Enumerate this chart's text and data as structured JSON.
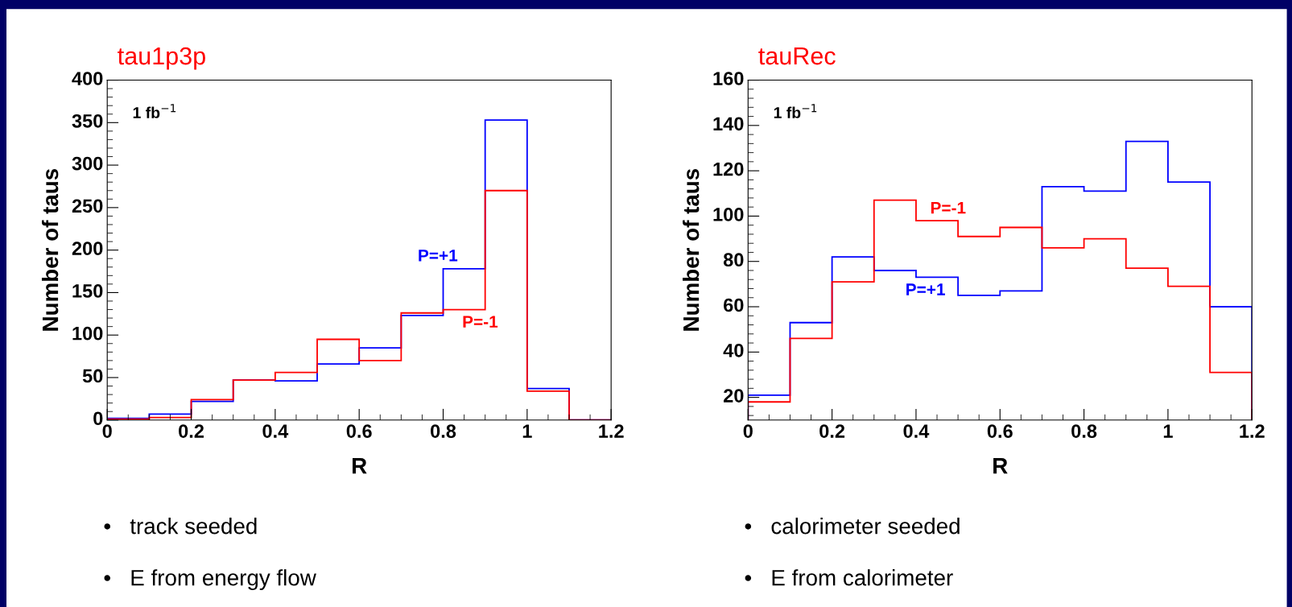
{
  "chart_data": [
    {
      "type": "histogram",
      "title": "tau1p3p",
      "xlabel": "R",
      "ylabel": "Number of taus",
      "bins": [
        0,
        0.1,
        0.2,
        0.3,
        0.4,
        0.5,
        0.6,
        0.7,
        0.8,
        0.9,
        1.0,
        1.1,
        1.2
      ],
      "series": [
        {
          "name": "P=+1",
          "color": "#0000ff",
          "values": [
            2,
            7,
            22,
            47,
            46,
            66,
            85,
            123,
            178,
            353,
            37,
            0
          ]
        },
        {
          "name": "P=-1",
          "color": "#ff0000",
          "values": [
            1,
            3,
            24,
            47,
            56,
            95,
            70,
            126,
            130,
            270,
            34,
            0
          ]
        }
      ],
      "xlim": [
        0,
        1.2
      ],
      "xticks": [
        0,
        0.2,
        0.4,
        0.6,
        0.8,
        1,
        1.2
      ],
      "ylim": [
        0,
        400
      ],
      "yticks": [
        0,
        50,
        100,
        150,
        200,
        250,
        300,
        350,
        400
      ],
      "annotations": [
        "1 fb$^{−1}$",
        "•   track seeded",
        "•   E from energy flow"
      ]
    },
    {
      "type": "histogram",
      "title": "tauRec",
      "xlabel": "R",
      "ylabel": "Number of taus",
      "bins": [
        0,
        0.1,
        0.2,
        0.3,
        0.4,
        0.5,
        0.6,
        0.7,
        0.8,
        0.9,
        1.0,
        1.1,
        1.2
      ],
      "series": [
        {
          "name": "P=+1",
          "color": "#0000ff",
          "values": [
            21,
            53,
            82,
            76,
            73,
            65,
            67,
            113,
            111,
            133,
            115,
            60
          ]
        },
        {
          "name": "P=-1",
          "color": "#ff0000",
          "values": [
            18,
            46,
            71,
            107,
            98,
            91,
            95,
            86,
            90,
            77,
            69,
            31
          ]
        }
      ],
      "xlim": [
        0,
        1.2
      ],
      "xticks": [
        0,
        0.2,
        0.4,
        0.6,
        0.8,
        1,
        1.2
      ],
      "ylim": [
        10,
        160
      ],
      "yticks": [
        20,
        40,
        60,
        80,
        100,
        120,
        140,
        160
      ],
      "annotations": [
        "1 fb$^{−1}$",
        "•   calorimeter seeded",
        "•   E from calorimeter"
      ]
    }
  ]
}
